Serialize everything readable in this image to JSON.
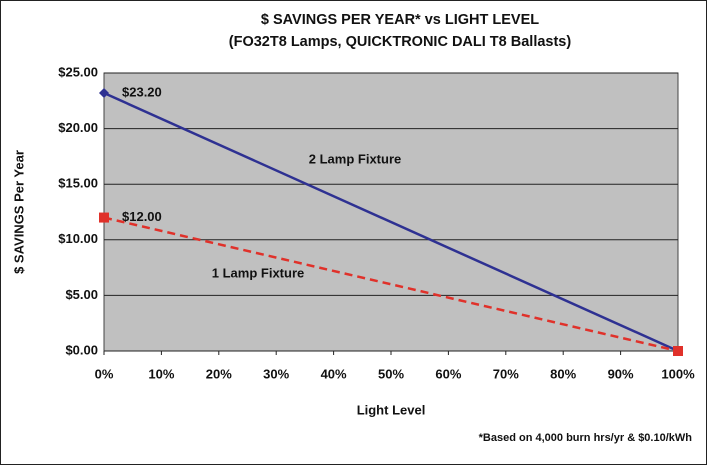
{
  "chart_data": {
    "type": "line",
    "title": "$ SAVINGS PER YEAR* vs LIGHT LEVEL",
    "subtitle": "(FO32T8 Lamps, QUICKTRONIC DALI T8 Ballasts)",
    "x_label": "Light Level",
    "y_label": "$ SAVINGS Per Year",
    "footnote": "*Based on 4,000 burn hrs/yr & $0.10/kWh",
    "x": [
      0,
      100
    ],
    "series": [
      {
        "name": "2 Lamp Fixture",
        "color": "#2e3192",
        "dash": false,
        "marker": "diamond",
        "values": [
          23.2,
          0
        ],
        "value_labels": [
          "$23.20",
          null
        ]
      },
      {
        "name": "1 Lamp Fixture",
        "color": "#e0312a",
        "dash": true,
        "marker": "square",
        "values": [
          12,
          0
        ],
        "value_labels": [
          "$12.00",
          null
        ]
      }
    ],
    "xlim": [
      0,
      100
    ],
    "xticks": [
      {
        "value": 0,
        "label": "0%"
      },
      {
        "value": 10,
        "label": "10%"
      },
      {
        "value": 20,
        "label": "20%"
      },
      {
        "value": 30,
        "label": "30%"
      },
      {
        "value": 40,
        "label": "40%"
      },
      {
        "value": 50,
        "label": "50%"
      },
      {
        "value": 60,
        "label": "60%"
      },
      {
        "value": 70,
        "label": "70%"
      },
      {
        "value": 80,
        "label": "80%"
      },
      {
        "value": 90,
        "label": "90%"
      },
      {
        "value": 100,
        "label": "100%"
      }
    ],
    "ylim": [
      0,
      25
    ],
    "yticks": [
      {
        "value": 0,
        "label": "$0.00"
      },
      {
        "value": 5,
        "label": "$5.00"
      },
      {
        "value": 10,
        "label": "$10.00"
      },
      {
        "value": 15,
        "label": "$15.00"
      },
      {
        "value": 20,
        "label": "$20.00"
      },
      {
        "value": 25,
        "label": "$25.00"
      }
    ],
    "grid": true
  }
}
